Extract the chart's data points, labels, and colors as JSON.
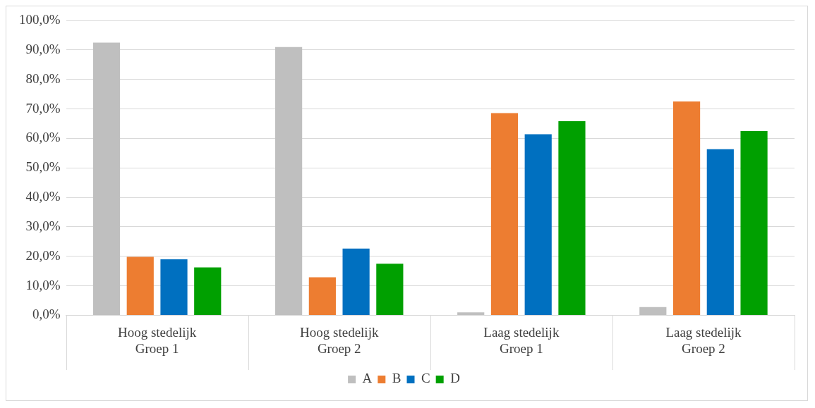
{
  "chart_data": {
    "type": "bar",
    "categories": [
      "Hoog stedelijk\nGroep 1",
      "Hoog stedelijk\nGroep 2",
      "Laag stedelijk\nGroep 1",
      "Laag stedelijk\nGroep 2"
    ],
    "series": [
      {
        "name": "A",
        "color": "#bfbfbf",
        "values": [
          92.5,
          91.0,
          1.0,
          2.8
        ]
      },
      {
        "name": "B",
        "color": "#ed7d31",
        "values": [
          19.8,
          12.9,
          68.6,
          72.5
        ]
      },
      {
        "name": "C",
        "color": "#0070c0",
        "values": [
          19.0,
          22.6,
          61.4,
          56.3
        ]
      },
      {
        "name": "D",
        "color": "#00a000",
        "values": [
          16.2,
          17.5,
          65.8,
          62.5
        ]
      }
    ],
    "ylim": [
      0,
      100
    ],
    "yticks": [
      {
        "value": 0,
        "label": "0,0%"
      },
      {
        "value": 10,
        "label": "10,0%"
      },
      {
        "value": 20,
        "label": "20,0%"
      },
      {
        "value": 30,
        "label": "30,0%"
      },
      {
        "value": 40,
        "label": "40,0%"
      },
      {
        "value": 50,
        "label": "50,0%"
      },
      {
        "value": 60,
        "label": "60,0%"
      },
      {
        "value": 70,
        "label": "70,0%"
      },
      {
        "value": 80,
        "label": "80,0%"
      },
      {
        "value": 90,
        "label": "90,0%"
      },
      {
        "value": 100,
        "label": "100,0%"
      }
    ],
    "grid": "y",
    "legend": "bottom"
  }
}
